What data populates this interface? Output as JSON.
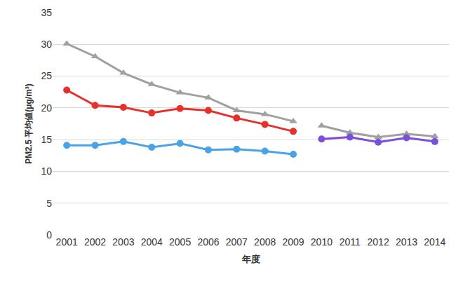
{
  "chart_data": {
    "type": "line",
    "x_label": "年度",
    "y_label": "PM2.5 平均値(μg/m³)",
    "categories": [
      "2001",
      "2002",
      "2003",
      "2004",
      "2005",
      "2006",
      "2007",
      "2008",
      "2009",
      "2010",
      "2011",
      "2012",
      "2013",
      "2014"
    ],
    "series": [
      {
        "color": "#a0a0a0",
        "marker": "triangle",
        "values": [
          30.1,
          28.1,
          25.5,
          23.7,
          22.4,
          21.6,
          19.6,
          19.0,
          17.9,
          null,
          null,
          null,
          null,
          null
        ]
      },
      {
        "color": "#a0a0a0",
        "marker": "triangle",
        "values": [
          null,
          null,
          null,
          null,
          null,
          null,
          null,
          null,
          null,
          17.2,
          16.1,
          15.4,
          15.9,
          15.5
        ]
      },
      {
        "color": "#e8302a",
        "marker": "circle",
        "values": [
          22.8,
          20.4,
          20.1,
          19.2,
          19.9,
          19.6,
          18.4,
          17.4,
          16.3,
          null,
          null,
          null,
          null,
          null
        ]
      },
      {
        "color": "#4aa3e6",
        "marker": "circle",
        "values": [
          14.1,
          14.1,
          14.7,
          13.8,
          14.4,
          13.4,
          13.5,
          13.2,
          12.7,
          null,
          null,
          null,
          null,
          null
        ]
      },
      {
        "color": "#7b4fd8",
        "marker": "circle",
        "values": [
          null,
          null,
          null,
          null,
          null,
          null,
          null,
          null,
          null,
          15.1,
          15.4,
          14.6,
          15.3,
          14.7
        ]
      }
    ],
    "ylim": [
      0,
      35
    ],
    "yticks": [
      0,
      5,
      10,
      15,
      20,
      25,
      30,
      35
    ],
    "grid": true
  }
}
